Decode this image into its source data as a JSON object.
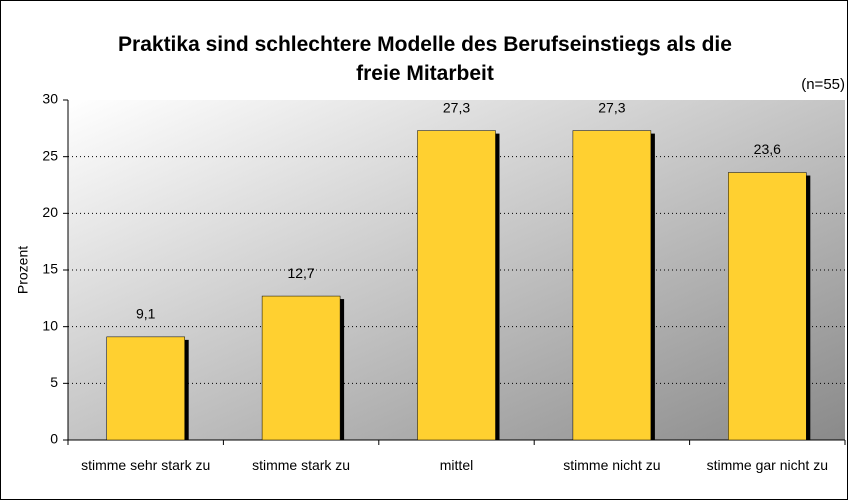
{
  "chart_data": {
    "type": "bar",
    "title": "Praktika sind schlechtere Modelle des Berufseinstiegs als die freie Mitarbeit",
    "annotation": "(n=55)",
    "y_label": "Prozent",
    "categories": [
      "stimme sehr stark zu",
      "stimme stark zu",
      "mittel",
      "stimme nicht zu",
      "stimme gar nicht zu"
    ],
    "values": [
      9.1,
      12.7,
      27.3,
      27.3,
      23.6
    ],
    "value_labels": [
      "9,1",
      "12,7",
      "27,3",
      "27,3",
      "23,6"
    ],
    "color": "#ffd030",
    "ylim": [
      0,
      30
    ],
    "yticks": [
      0,
      5,
      10,
      15,
      20,
      25,
      30
    ],
    "grid": true
  }
}
